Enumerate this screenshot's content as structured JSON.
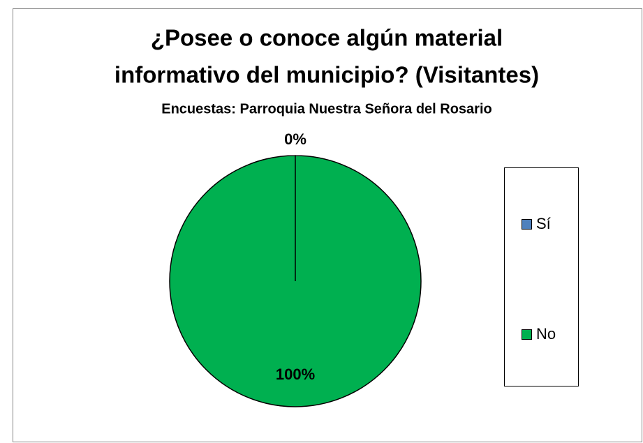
{
  "chart_data": {
    "type": "pie",
    "title": [
      "¿Posee o conoce algún material",
      "informativo del municipio? (Visitantes)"
    ],
    "subtitle": "Encuestas: Parroquia Nuestra Señora del Rosario",
    "categories": [
      "Sí",
      "No"
    ],
    "values": [
      0,
      100
    ],
    "value_labels": [
      "0%",
      "100%"
    ],
    "colors": [
      "#4f81bd",
      "#00b050"
    ],
    "legend": "right"
  }
}
